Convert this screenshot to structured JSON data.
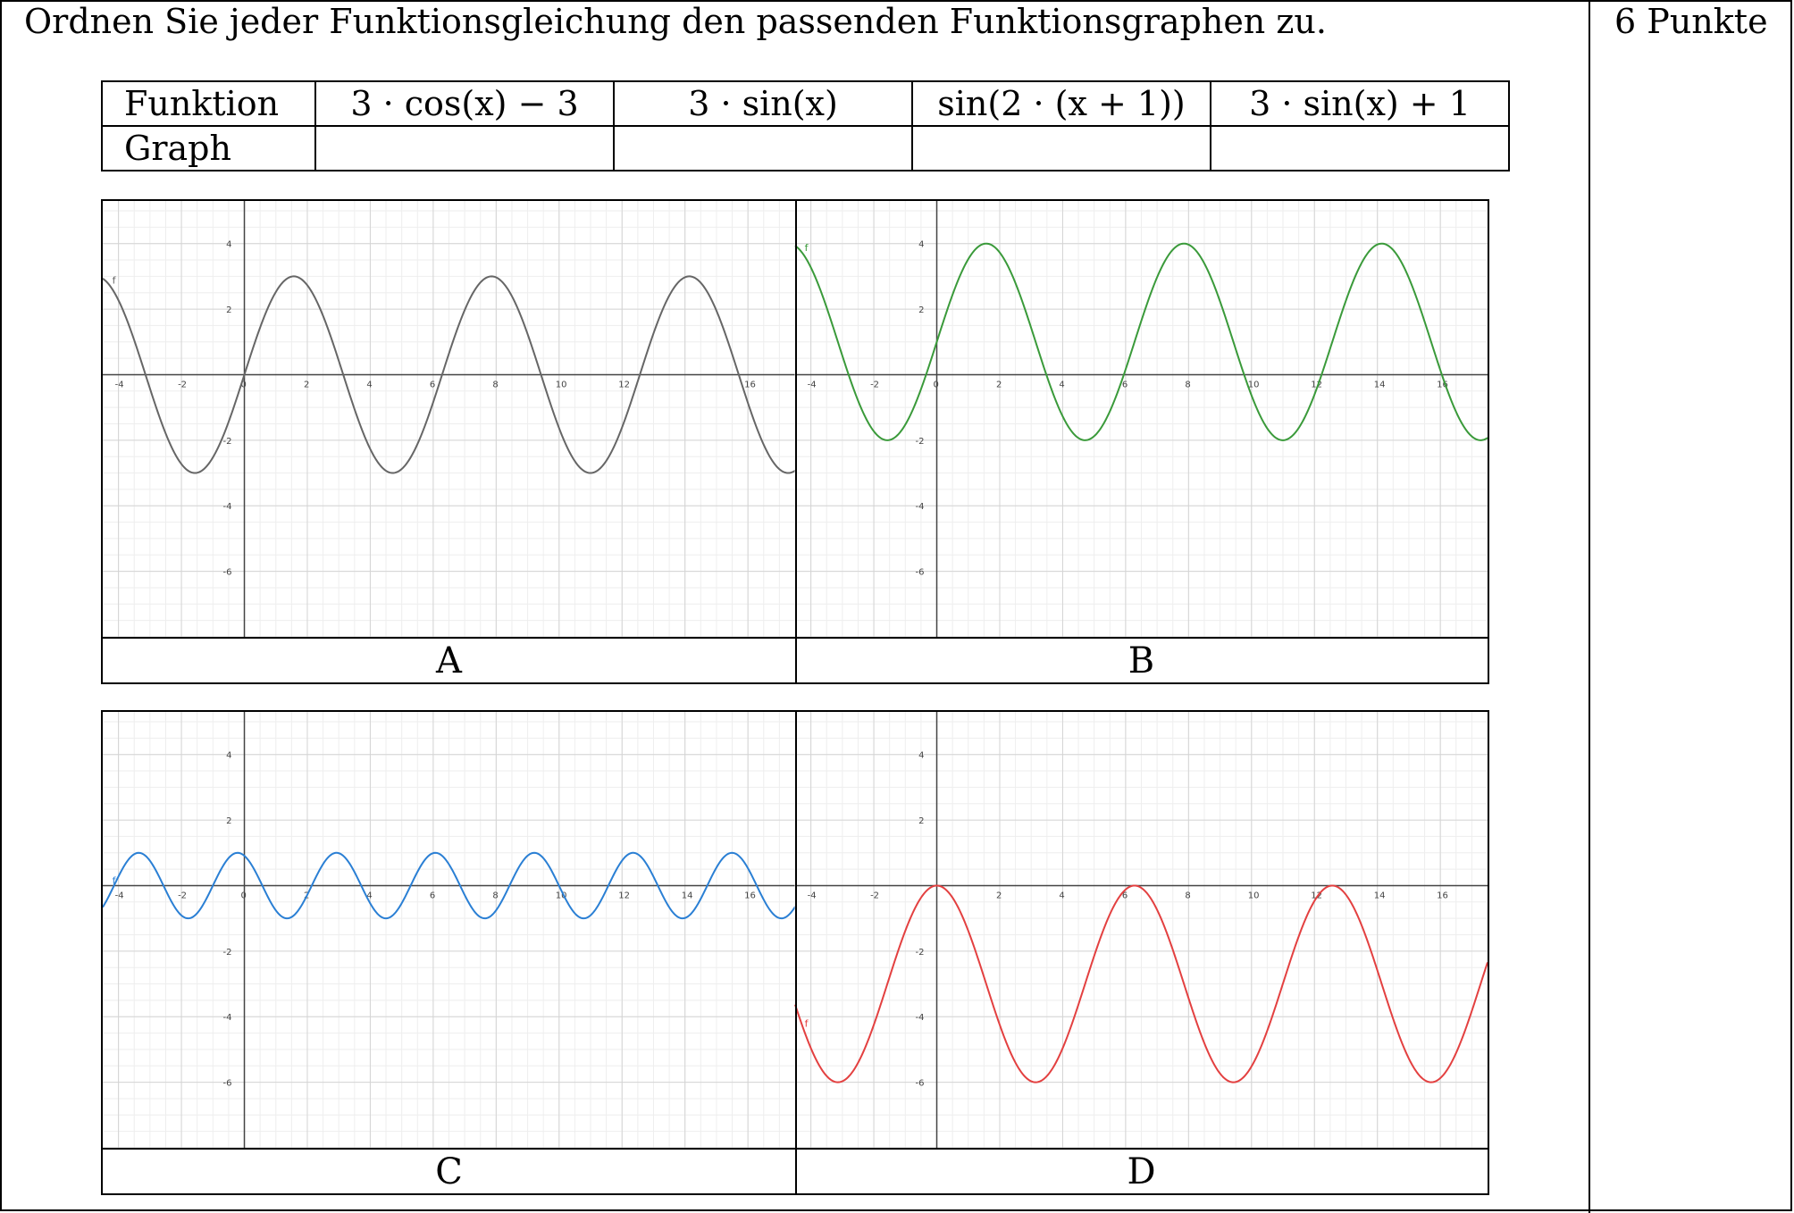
{
  "task": "Ordnen Sie jeder Funktionsgleichung den passenden Funktionsgraphen zu.",
  "points": "6 Punkte",
  "table": {
    "row1_label": "Funktion",
    "row2_label": "Graph",
    "functions": [
      "3 · cos(x) − 3",
      "3 · sin(x)",
      "sin(2 · (x + 1))",
      "3 · sin(x) + 1"
    ],
    "answers": [
      "",
      "",
      "",
      ""
    ]
  },
  "graphs": {
    "labels": [
      "A",
      "B",
      "C",
      "D"
    ],
    "point_label": "f"
  },
  "chart_data": [
    {
      "type": "line",
      "title": "A",
      "color": "#666666",
      "xlim": [
        -4.5,
        17.5
      ],
      "ylim": [
        -8,
        5.3
      ],
      "x_ticks": [
        "-4",
        "-2",
        "0",
        "2",
        "4",
        "6",
        "8",
        "10",
        "12",
        "16"
      ],
      "y_ticks": [
        "4",
        "2",
        "-2",
        "-4",
        "-6"
      ],
      "curve": {
        "amplitude": 3,
        "frequency": 1,
        "shift": 0,
        "offset": 0
      }
    },
    {
      "type": "line",
      "title": "B",
      "color": "#3a9a3a",
      "xlim": [
        -4.5,
        17.5
      ],
      "ylim": [
        -8,
        5.3
      ],
      "x_ticks": [
        "-4",
        "-2",
        "0",
        "2",
        "4",
        "6",
        "8",
        "10",
        "12",
        "14",
        "16"
      ],
      "y_ticks": [
        "4",
        "2",
        "-2",
        "-4",
        "-6"
      ],
      "curve": {
        "amplitude": 3,
        "frequency": 1,
        "shift": 0,
        "offset": 1
      }
    },
    {
      "type": "line",
      "title": "C",
      "color": "#2a7fd4",
      "xlim": [
        -4.5,
        17.5
      ],
      "ylim": [
        -8,
        5.3
      ],
      "x_ticks": [
        "-4",
        "-2",
        "0",
        "2",
        "4",
        "6",
        "8",
        "10",
        "12",
        "14",
        "16"
      ],
      "y_ticks": [
        "4",
        "2",
        "-2",
        "-4",
        "-6"
      ],
      "curve": {
        "amplitude": 1,
        "frequency": 2,
        "shift": 1,
        "offset": 0
      }
    },
    {
      "type": "line",
      "title": "D",
      "color": "#e34040",
      "xlim": [
        -4.5,
        17.5
      ],
      "ylim": [
        -8,
        5.3
      ],
      "x_ticks": [
        "-4",
        "-2",
        "2",
        "4",
        "6",
        "8",
        "10",
        "12",
        "14",
        "16"
      ],
      "y_ticks": [
        "4",
        "2",
        "-2",
        "-4",
        "-6"
      ],
      "curve": {
        "amplitude": 3,
        "frequency": 1,
        "phase": "cos",
        "offset": -3
      }
    }
  ]
}
